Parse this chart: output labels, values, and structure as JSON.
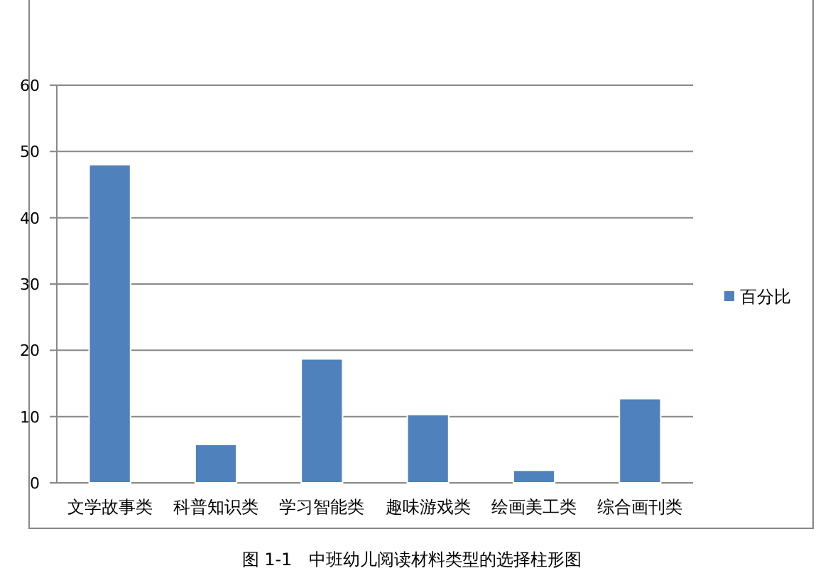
{
  "chart_data": {
    "type": "bar",
    "categories": [
      "文学故事类",
      "科普知识类",
      "学习智能类",
      "趣味游戏类",
      "绘画美工类",
      "综合画刊类"
    ],
    "series": [
      {
        "name": "百分比",
        "color": "#4f81bd",
        "values": [
          48,
          5.8,
          18.7,
          10.3,
          1.9,
          12.7
        ]
      }
    ],
    "ylim": [
      0,
      60
    ],
    "yticks": [
      0,
      10,
      20,
      30,
      40,
      50,
      60
    ],
    "grid": "y",
    "legend": "right",
    "annotations": [
      "图 1-1　中班幼儿阅读材料类型的选择柱形图"
    ]
  }
}
